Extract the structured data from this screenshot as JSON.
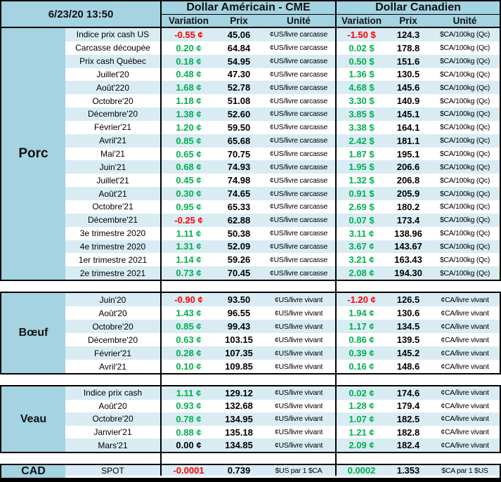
{
  "timestamp": "6/23/20 13:50",
  "header": {
    "us_title": "Dollar Américain - CME",
    "ca_title": "Dollar Canadien",
    "subcolumns": {
      "variation": "Variation",
      "prix": "Prix",
      "unite": "Unité"
    }
  },
  "colors": {
    "positive": "#00B050",
    "negative": "#FF0000",
    "zero": "#000000",
    "header_bg": "#A4D3E1",
    "stripe_bg": "#D9ECF4"
  },
  "sections": [
    {
      "name": "Porc",
      "rows": [
        {
          "label": "Indice prix cash US",
          "us_var": "-0.55 ¢",
          "us_prix": "45.06",
          "us_unit": "¢US/livre carcasse",
          "ca_var": "-1.50 $",
          "ca_prix": "124.3",
          "ca_unit": "$CA/100kg (Qc)"
        },
        {
          "label": "Carcasse découpée",
          "us_var": "0.20 ¢",
          "us_prix": "64.84",
          "us_unit": "¢US/livre carcasse",
          "ca_var": "0.02 $",
          "ca_prix": "178.8",
          "ca_unit": "$CA/100kg (Qc)"
        },
        {
          "label": "Prix cash Québec",
          "us_var": "0.18 ¢",
          "us_prix": "54.95",
          "us_unit": "¢US/livre carcasse",
          "ca_var": "0.50 $",
          "ca_prix": "151.6",
          "ca_unit": "$CA/100kg (Qc)"
        },
        {
          "label": "Juillet'20",
          "us_var": "0.48 ¢",
          "us_prix": "47.30",
          "us_unit": "¢US/livre carcasse",
          "ca_var": "1.36 $",
          "ca_prix": "130.5",
          "ca_unit": "$CA/100kg (Qc)"
        },
        {
          "label": "Août'220",
          "us_var": "1.68 ¢",
          "us_prix": "52.78",
          "us_unit": "¢US/livre carcasse",
          "ca_var": "4.68 $",
          "ca_prix": "145.6",
          "ca_unit": "$CA/100kg (Qc)"
        },
        {
          "label": "Octobre'20",
          "us_var": "1.18 ¢",
          "us_prix": "51.08",
          "us_unit": "¢US/livre carcasse",
          "ca_var": "3.30 $",
          "ca_prix": "140.9",
          "ca_unit": "$CA/100kg (Qc)"
        },
        {
          "label": "Décembre'20",
          "us_var": "1.38 ¢",
          "us_prix": "52.60",
          "us_unit": "¢US/livre carcasse",
          "ca_var": "3.85 $",
          "ca_prix": "145.1",
          "ca_unit": "$CA/100kg (Qc)"
        },
        {
          "label": "Février'21",
          "us_var": "1.20 ¢",
          "us_prix": "59.50",
          "us_unit": "¢US/livre carcasse",
          "ca_var": "3.38 $",
          "ca_prix": "164.1",
          "ca_unit": "$CA/100kg (Qc)"
        },
        {
          "label": "Avril'21",
          "us_var": "0.85 ¢",
          "us_prix": "65.68",
          "us_unit": "¢US/livre carcasse",
          "ca_var": "2.42 $",
          "ca_prix": "181.1",
          "ca_unit": "$CA/100kg (Qc)"
        },
        {
          "label": "Mai'21",
          "us_var": "0.65 ¢",
          "us_prix": "70.75",
          "us_unit": "¢US/livre carcasse",
          "ca_var": "1.87 $",
          "ca_prix": "195.1",
          "ca_unit": "$CA/100kg (Qc)"
        },
        {
          "label": "Juin'21",
          "us_var": "0.68 ¢",
          "us_prix": "74.93",
          "us_unit": "¢US/livre carcasse",
          "ca_var": "1.95 $",
          "ca_prix": "206.6",
          "ca_unit": "$CA/100kg (Qc)"
        },
        {
          "label": "Juillet'21",
          "us_var": "0.45 ¢",
          "us_prix": "74.98",
          "us_unit": "¢US/livre carcasse",
          "ca_var": "1.32 $",
          "ca_prix": "206.8",
          "ca_unit": "$CA/100kg (Qc)"
        },
        {
          "label": "Août'21",
          "us_var": "0.30 ¢",
          "us_prix": "74.65",
          "us_unit": "¢US/livre carcasse",
          "ca_var": "0.91 $",
          "ca_prix": "205.9",
          "ca_unit": "$CA/100kg (Qc)"
        },
        {
          "label": "Octobre'21",
          "us_var": "0.95 ¢",
          "us_prix": "65.33",
          "us_unit": "¢US/livre carcasse",
          "ca_var": "2.69 $",
          "ca_prix": "180.2",
          "ca_unit": "$CA/100kg (Qc)"
        },
        {
          "label": "Décembre'21",
          "us_var": "-0.25 ¢",
          "us_prix": "62.88",
          "us_unit": "¢US/livre carcasse",
          "ca_var": "0.07 $",
          "ca_prix": "173.4",
          "ca_unit": "$CA/100kg (Qc)"
        },
        {
          "label": "3e trimestre 2020",
          "us_var": "1.11 ¢",
          "us_prix": "50.38",
          "us_unit": "¢US/livre carcasse",
          "ca_var": "3.11 ¢",
          "ca_prix": "138.96",
          "ca_unit": "$CA/100kg (Qc)"
        },
        {
          "label": "4e trimestre 2020",
          "us_var": "1.31 ¢",
          "us_prix": "52.09",
          "us_unit": "¢US/livre carcasse",
          "ca_var": "3.67 ¢",
          "ca_prix": "143.67",
          "ca_unit": "$CA/100kg (Qc)"
        },
        {
          "label": "1er trimestre 2021",
          "us_var": "1.14 ¢",
          "us_prix": "59.26",
          "us_unit": "¢US/livre carcasse",
          "ca_var": "3.21 ¢",
          "ca_prix": "163.43",
          "ca_unit": "$CA/100kg (Qc)"
        },
        {
          "label": "2e trimestre 2021",
          "us_var": "0.73 ¢",
          "us_prix": "70.45",
          "us_unit": "¢US/livre carcasse",
          "ca_var": "2.08 ¢",
          "ca_prix": "194.30",
          "ca_unit": "$CA/100kg (Qc)"
        }
      ]
    },
    {
      "name": "Bœuf",
      "rows": [
        {
          "label": "Juin'20",
          "us_var": "-0.90 ¢",
          "us_prix": "93.50",
          "us_unit": "¢US/livre vivant",
          "ca_var": "-1.20 ¢",
          "ca_prix": "126.5",
          "ca_unit": "¢CA/livre vivant"
        },
        {
          "label": "Août'20",
          "us_var": "1.43 ¢",
          "us_prix": "96.55",
          "us_unit": "¢US/livre vivant",
          "ca_var": "1.94 ¢",
          "ca_prix": "130.6",
          "ca_unit": "¢CA/livre vivant"
        },
        {
          "label": "Octobre'20",
          "us_var": "0.85 ¢",
          "us_prix": "99.43",
          "us_unit": "¢US/livre vivant",
          "ca_var": "1.17 ¢",
          "ca_prix": "134.5",
          "ca_unit": "¢CA/livre vivant"
        },
        {
          "label": "Décembre'20",
          "us_var": "0.63 ¢",
          "us_prix": "103.15",
          "us_unit": "¢US/livre vivant",
          "ca_var": "0.86 ¢",
          "ca_prix": "139.5",
          "ca_unit": "¢CA/livre vivant"
        },
        {
          "label": "Février'21",
          "us_var": "0.28 ¢",
          "us_prix": "107.35",
          "us_unit": "¢US/livre vivant",
          "ca_var": "0.39 ¢",
          "ca_prix": "145.2",
          "ca_unit": "¢CA/livre vivant"
        },
        {
          "label": "Avril'21",
          "us_var": "0.10 ¢",
          "us_prix": "109.85",
          "us_unit": "¢US/livre vivant",
          "ca_var": "0.16 ¢",
          "ca_prix": "148.6",
          "ca_unit": "¢CA/livre vivant"
        }
      ]
    },
    {
      "name": "Veau",
      "rows": [
        {
          "label": "Indice prix cash",
          "us_var": "1.11 ¢",
          "us_prix": "129.12",
          "us_unit": "¢US/livre vivant",
          "ca_var": "0.02 ¢",
          "ca_prix": "174.6",
          "ca_unit": "¢CA/livre vivant"
        },
        {
          "label": "Août'20",
          "us_var": "0.93 ¢",
          "us_prix": "132.68",
          "us_unit": "¢US/livre vivant",
          "ca_var": "1.28 ¢",
          "ca_prix": "179.4",
          "ca_unit": "¢CA/livre vivant"
        },
        {
          "label": "Octobre'20",
          "us_var": "0.78 ¢",
          "us_prix": "134.95",
          "us_unit": "¢US/livre vivant",
          "ca_var": "1.07 ¢",
          "ca_prix": "182.5",
          "ca_unit": "¢CA/livre vivant"
        },
        {
          "label": "Janvier'21",
          "us_var": "0.88 ¢",
          "us_prix": "135.18",
          "us_unit": "¢US/livre vivant",
          "ca_var": "1.21 ¢",
          "ca_prix": "182.8",
          "ca_unit": "¢CA/livre vivant"
        },
        {
          "label": "Mars'21",
          "us_var": "0.00 ¢",
          "us_prix": "134.85",
          "us_unit": "¢US/livre vivant",
          "ca_var": "2.09 ¢",
          "ca_prix": "182.4",
          "ca_unit": "¢CA/livre vivant"
        }
      ]
    },
    {
      "name": "CAD",
      "rows": [
        {
          "label": "SPOT",
          "us_var": "-0.0001",
          "us_prix": "0.739",
          "us_unit": "$US par 1 $CA",
          "ca_var": "0.0002",
          "ca_prix": "1.353",
          "ca_unit": "$CA par 1 $US"
        }
      ]
    }
  ]
}
